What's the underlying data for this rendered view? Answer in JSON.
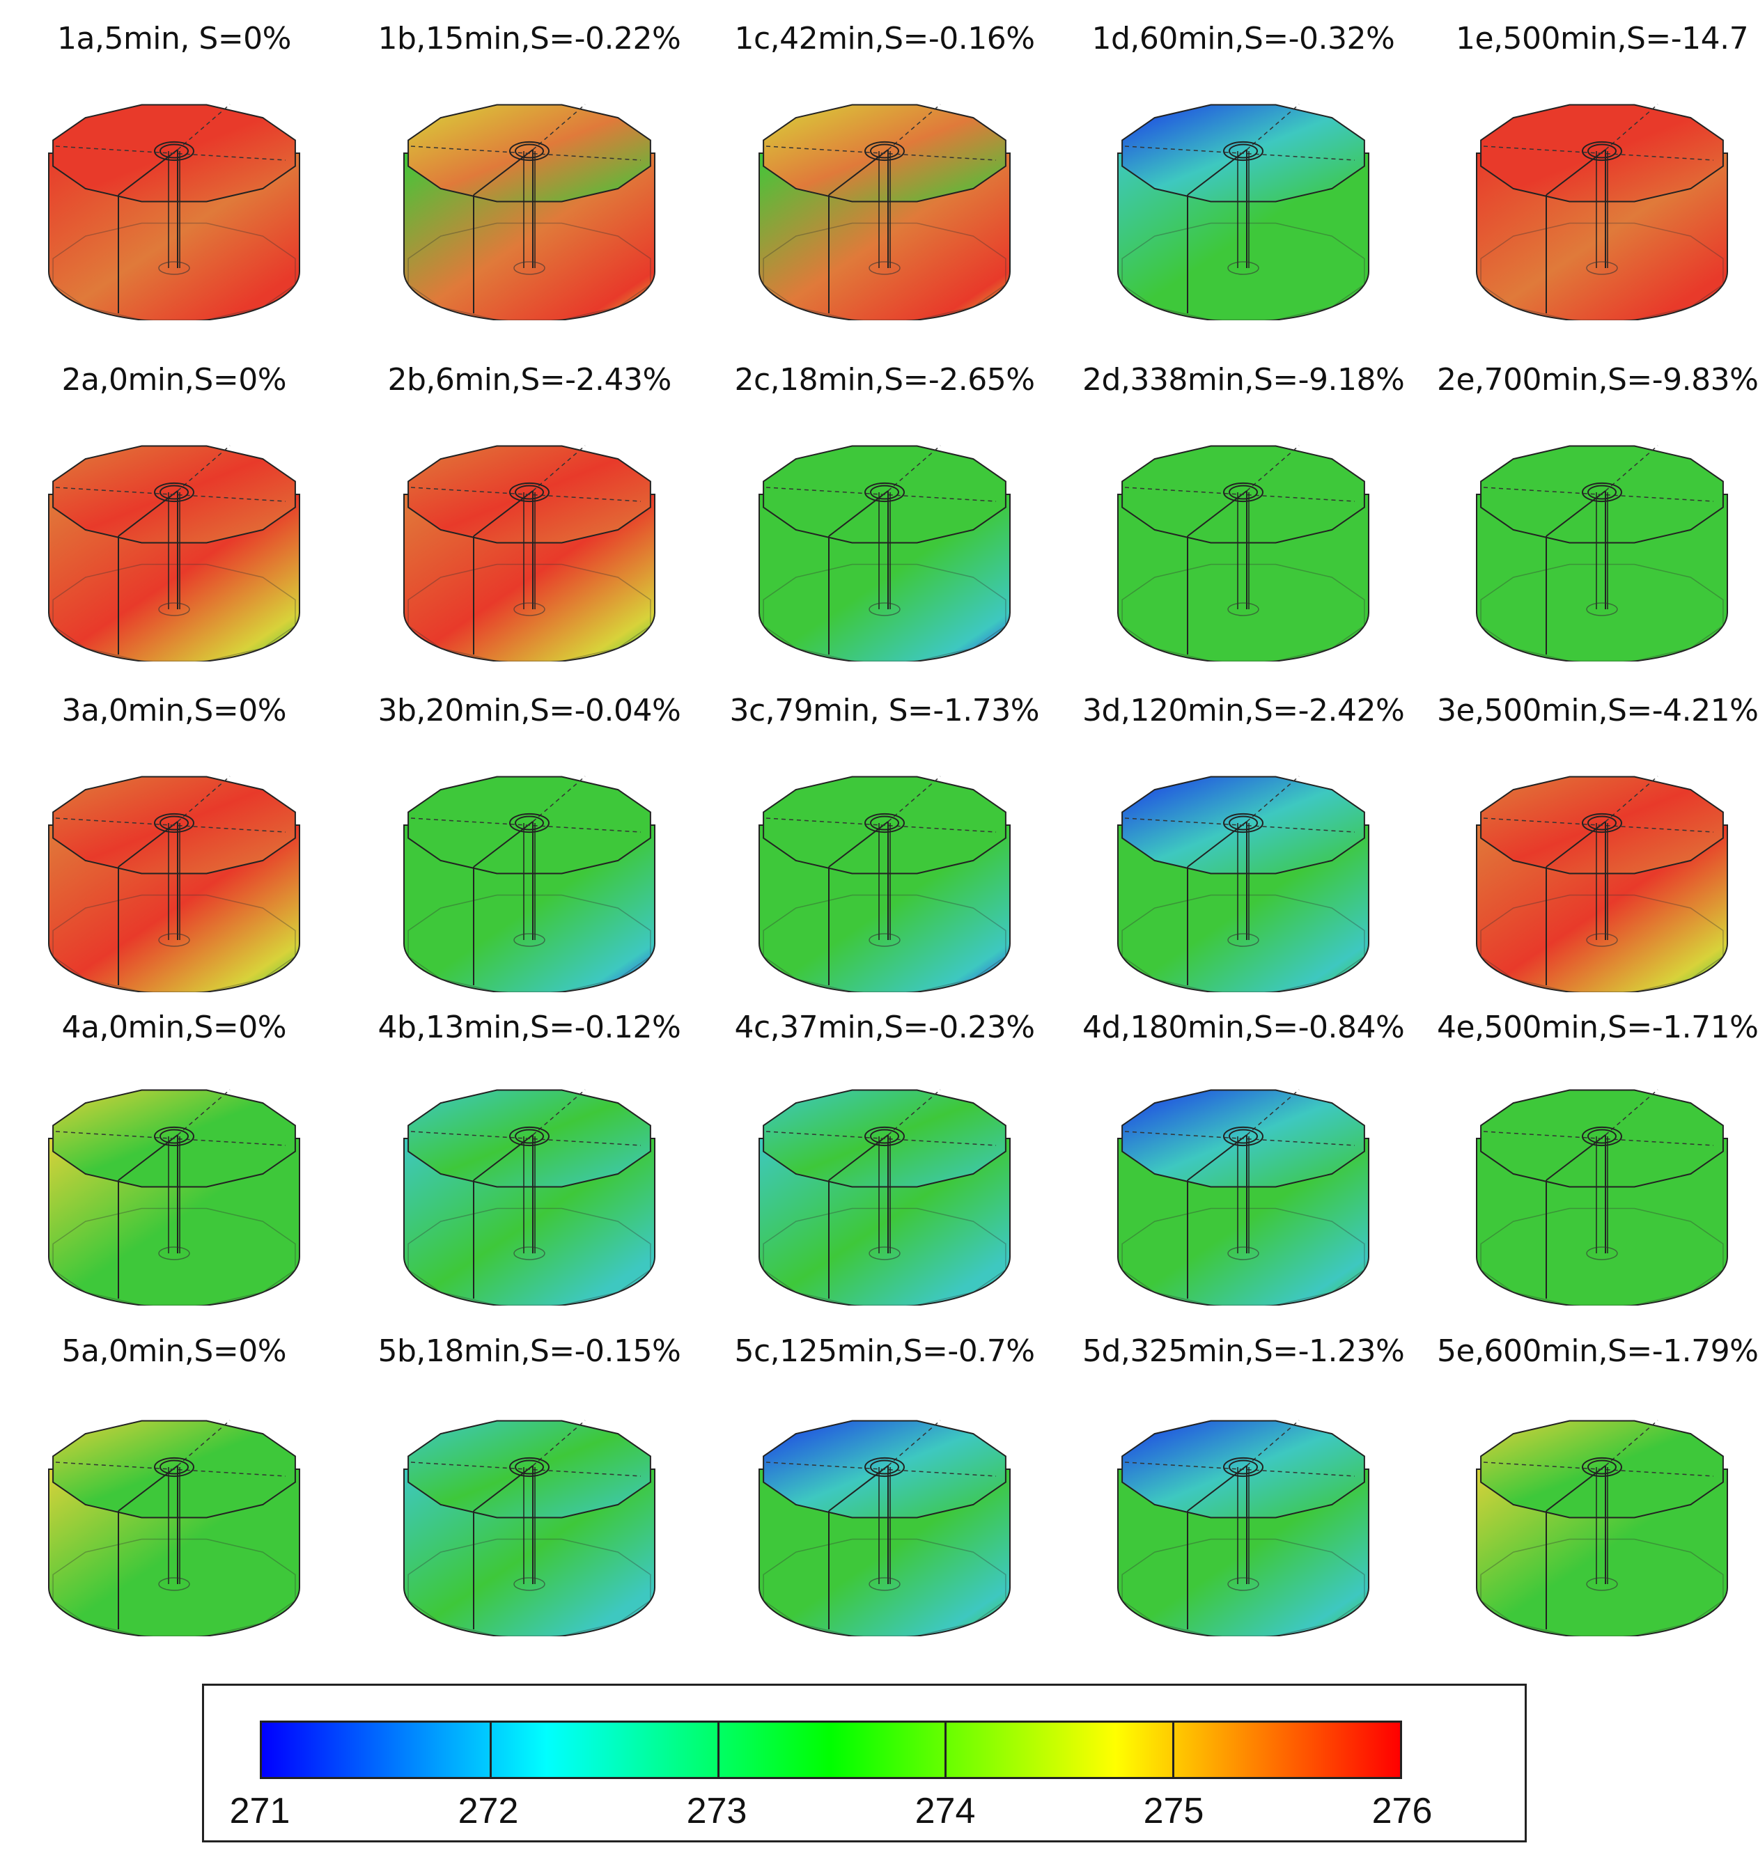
{
  "panels": [
    {
      "id": "1a",
      "label": "1a,5min, S=0%",
      "scheme": "red-top",
      "row": 0,
      "col": 0
    },
    {
      "id": "1b",
      "label": "1b,15min,S=-0.22%",
      "scheme": "mix-orange",
      "row": 0,
      "col": 1
    },
    {
      "id": "1c",
      "label": "1c,42min,S=-0.16%",
      "scheme": "mix-orange",
      "row": 0,
      "col": 2
    },
    {
      "id": "1d",
      "label": "1d,60min,S=-0.32%",
      "scheme": "blue-cool",
      "row": 0,
      "col": 3
    },
    {
      "id": "1e",
      "label": "1e,500min,S=-14.7",
      "scheme": "red-top",
      "row": 0,
      "col": 4
    },
    {
      "id": "2a",
      "label": "2a,0min,S=0%",
      "scheme": "orange-top",
      "row": 1,
      "col": 0
    },
    {
      "id": "2b",
      "label": "2b,6min,S=-2.43%",
      "scheme": "orange-top",
      "row": 1,
      "col": 1
    },
    {
      "id": "2c",
      "label": "2c,18min,S=-2.65%",
      "scheme": "green-blue-bottom",
      "row": 1,
      "col": 2
    },
    {
      "id": "2d",
      "label": "2d,338min,S=-9.18%",
      "scheme": "green",
      "row": 1,
      "col": 3
    },
    {
      "id": "2e",
      "label": "2e,700min,S=-9.83%",
      "scheme": "green",
      "row": 1,
      "col": 4
    },
    {
      "id": "3a",
      "label": "3a,0min,S=0%",
      "scheme": "orange-top",
      "row": 2,
      "col": 0
    },
    {
      "id": "3b",
      "label": "3b,20min,S=-0.04%",
      "scheme": "green-blue-bottom",
      "row": 2,
      "col": 1
    },
    {
      "id": "3c",
      "label": "3c,79min, S=-1.73%",
      "scheme": "green-blue-bottom",
      "row": 2,
      "col": 2
    },
    {
      "id": "3d",
      "label": "3d,120min,S=-2.42%",
      "scheme": "green-cool",
      "row": 2,
      "col": 3
    },
    {
      "id": "3e",
      "label": "3e,500min,S=-4.21%",
      "scheme": "orange-top",
      "row": 2,
      "col": 4
    },
    {
      "id": "4a",
      "label": "4a,0min,S=0%",
      "scheme": "yellow-green",
      "row": 3,
      "col": 0
    },
    {
      "id": "4b",
      "label": "4b,13min,S=-0.12%",
      "scheme": "cyan-green",
      "row": 3,
      "col": 1
    },
    {
      "id": "4c",
      "label": "4c,37min,S=-0.23%",
      "scheme": "cyan-green",
      "row": 3,
      "col": 2
    },
    {
      "id": "4d",
      "label": "4d,180min,S=-0.84%",
      "scheme": "green-cool",
      "row": 3,
      "col": 3
    },
    {
      "id": "4e",
      "label": "4e,500min,S=-1.71%",
      "scheme": "green",
      "row": 3,
      "col": 4
    },
    {
      "id": "5a",
      "label": "5a,0min,S=0%",
      "scheme": "yellow-green",
      "row": 4,
      "col": 0
    },
    {
      "id": "5b",
      "label": "5b,18min,S=-0.15%",
      "scheme": "cyan-green",
      "row": 4,
      "col": 1
    },
    {
      "id": "5c",
      "label": "5c,125min,S=-0.7%",
      "scheme": "green-cool",
      "row": 4,
      "col": 2
    },
    {
      "id": "5d",
      "label": "5d,325min,S=-1.23%",
      "scheme": "green-cool",
      "row": 4,
      "col": 3
    },
    {
      "id": "5e",
      "label": "5e,600min,S=-1.79%",
      "scheme": "yellow-green",
      "row": 4,
      "col": 4
    }
  ],
  "colorbar": {
    "min": 271,
    "max": 276,
    "ticks": [
      "271",
      "272",
      "273",
      "274",
      "275",
      "276"
    ],
    "stops": [
      "#0000ff",
      "#00ffff",
      "#00ff00",
      "#ffff00",
      "#ff0000"
    ]
  },
  "colors": {
    "red": "#e83a2a",
    "orange": "#e07a3a",
    "yellow": "#d8d23a",
    "green": "#3ec83a",
    "cyan": "#3ec8c0",
    "blue": "#1a3ae8"
  }
}
